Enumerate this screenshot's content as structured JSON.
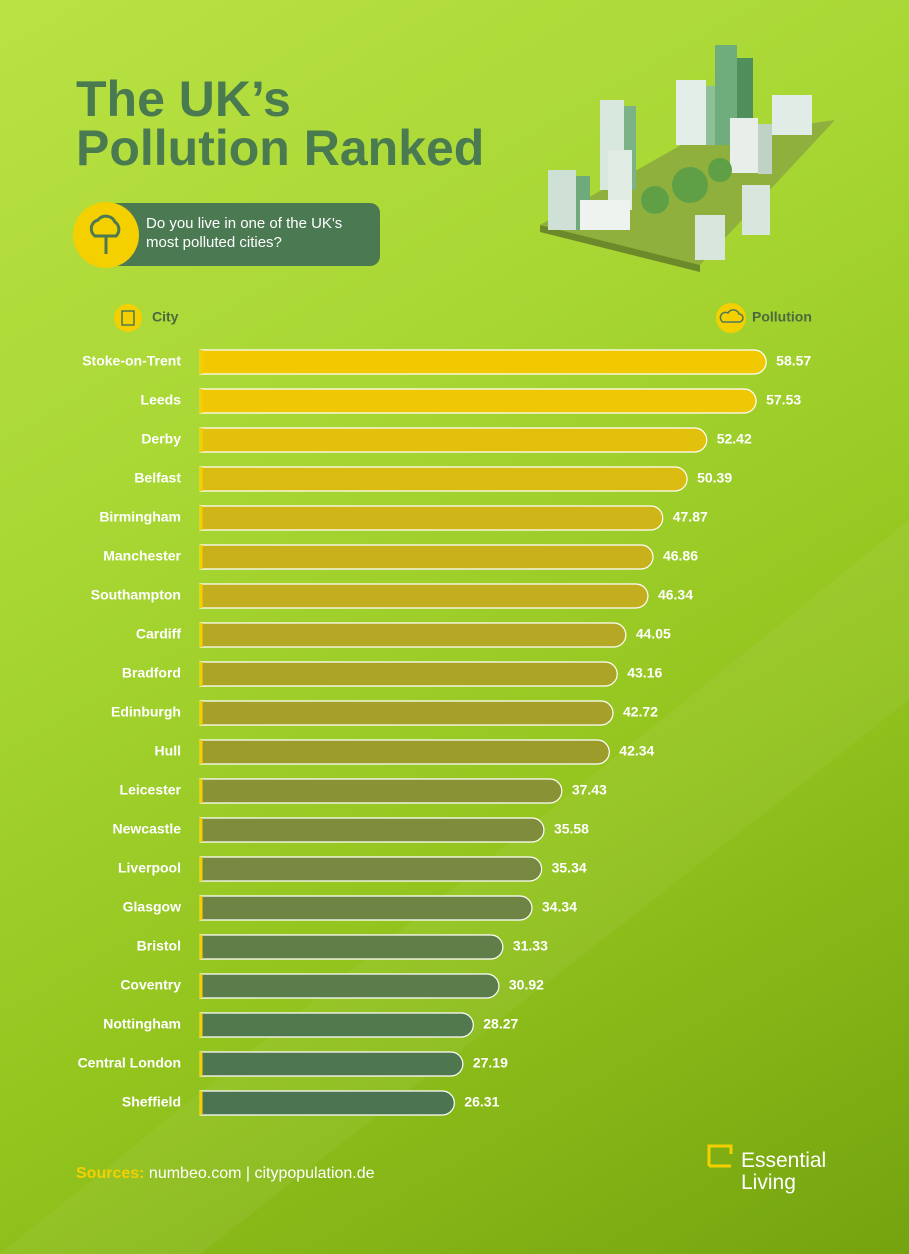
{
  "chart_data": {
    "type": "bar",
    "orientation": "horizontal",
    "title_lines": [
      "The UK’s",
      "Pollution Ranked"
    ],
    "subtitle": "Do you live in one of the UK's most polluted cities?",
    "category_header": "City",
    "value_header": "Pollution",
    "categories": [
      "Stoke-on-Trent",
      "Leeds",
      "Derby",
      "Belfast",
      "Birmingham",
      "Manchester",
      "Southampton",
      "Cardiff",
      "Bradford",
      "Edinburgh",
      "Hull",
      "Leicester",
      "Newcastle",
      "Liverpool",
      "Glasgow",
      "Bristol",
      "Coventry",
      "Nottingham",
      "Central London",
      "Sheffield"
    ],
    "values": [
      58.57,
      57.53,
      52.42,
      50.39,
      47.87,
      46.86,
      46.34,
      44.05,
      43.16,
      42.72,
      42.34,
      37.43,
      35.58,
      35.34,
      34.34,
      31.33,
      30.92,
      28.27,
      27.19,
      26.31
    ],
    "colors": [
      "#f2c900",
      "#f0c704",
      "#e3c00c",
      "#dabb12",
      "#cfb518",
      "#c8b11b",
      "#c2ae1e",
      "#b4a824",
      "#aca427",
      "#a4a02a",
      "#9c9c2d",
      "#8a9236",
      "#7f8c3c",
      "#778840",
      "#6e8444",
      "#617e49",
      "#5b7c4b",
      "#52784e",
      "#4f774f",
      "#4b7450"
    ],
    "xlim": [
      0,
      60
    ],
    "sources_label": "Sources:",
    "sources": "numbeo.com | citypopulation.de",
    "brand": "Essential Living"
  }
}
